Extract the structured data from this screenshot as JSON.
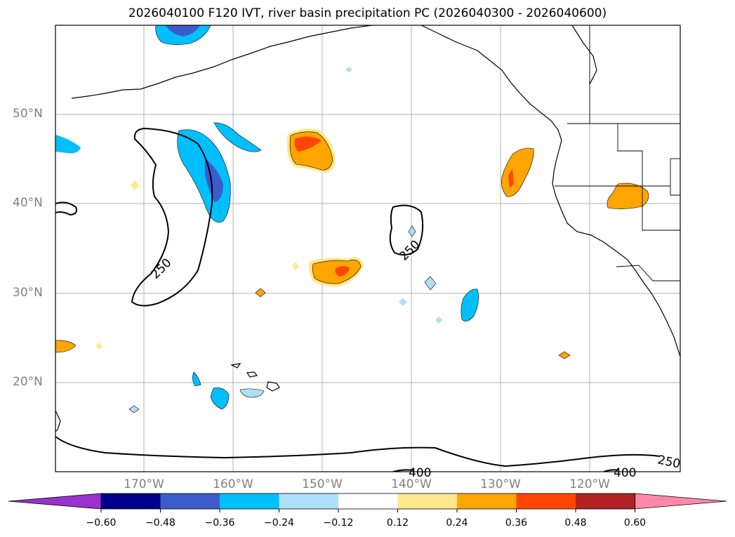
{
  "title": "2026040100 F120 IVT, river basin precipitation PC (2026040300 - 2026040600)",
  "map": {
    "lat_labels": [
      "50°N",
      "40°N",
      "30°N",
      "20°N"
    ],
    "lon_labels": [
      "170°W",
      "160°W",
      "150°W",
      "140°W",
      "130°W",
      "120°W"
    ],
    "contour_labels": [
      "250",
      "250",
      "250",
      "400",
      "400"
    ]
  },
  "colorbar": {
    "ticks": [
      "−0.60",
      "−0.48",
      "−0.36",
      "−0.24",
      "−0.12",
      "0.12",
      "0.24",
      "0.36",
      "0.48",
      "0.60"
    ],
    "colors": [
      "#9932cc",
      "#00008b",
      "#3c5ccc",
      "#00bfff",
      "#aee0fa",
      "#ffffff",
      "#ffe98c",
      "#ffa500",
      "#ff4500",
      "#b22222",
      "#ff88aa"
    ]
  },
  "colors": {
    "coast": "#000000",
    "grid": "#b0b0b0",
    "contour": "#000000"
  }
}
